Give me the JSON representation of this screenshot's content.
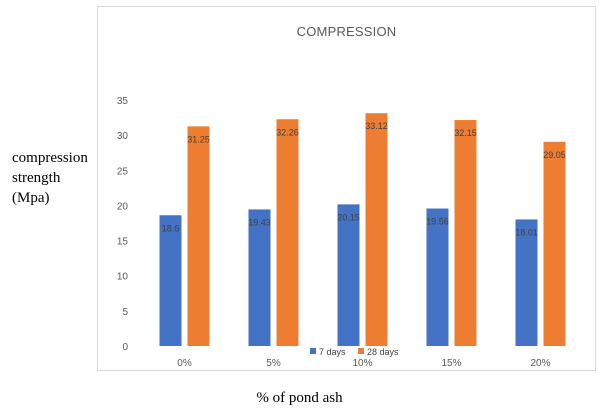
{
  "chart_data": {
    "type": "bar",
    "title": "COMPRESSION",
    "ylabel_lines": [
      "compression",
      "strength",
      "(Mpa)"
    ],
    "xlabel": "% of pond ash",
    "categories": [
      "0%",
      "5%",
      "10%",
      "15%",
      "20%"
    ],
    "series": [
      {
        "name": "7 days",
        "color": "#4472c4",
        "values": [
          18.6,
          19.43,
          20.15,
          19.56,
          18.01
        ]
      },
      {
        "name": "28 days",
        "color": "#ed7d31",
        "values": [
          31.25,
          32.26,
          33.12,
          32.15,
          29.05
        ]
      }
    ],
    "data_labels": {
      "7 days": [
        "18.6",
        "19.43",
        "20.15",
        "19.56",
        "18.01"
      ],
      "28 days": [
        "31.25",
        "32.26",
        "33.12",
        "32.15",
        "29.05"
      ]
    },
    "y_ticks": [
      0,
      5,
      10,
      15,
      20,
      25,
      30,
      35
    ],
    "ylim": [
      0,
      35
    ],
    "grid": false,
    "legend_position": "bottom"
  }
}
